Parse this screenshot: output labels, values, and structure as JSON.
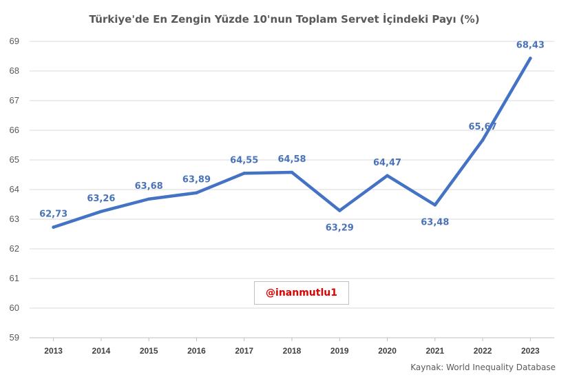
{
  "chart_data": {
    "type": "line",
    "title": "Türkiye'de En Zengin Yüzde 10'nun Toplam Servet İçindeki Payı (%)",
    "categories": [
      "2013",
      "2014",
      "2015",
      "2016",
      "2017",
      "2018",
      "2019",
      "2020",
      "2021",
      "2022",
      "2023"
    ],
    "series": [
      {
        "values": [
          62.73,
          63.26,
          63.68,
          63.89,
          64.55,
          64.58,
          63.29,
          64.47,
          63.48,
          65.67,
          68.43
        ]
      }
    ],
    "data_labels": [
      "62,73",
      "63,26",
      "63,68",
      "63,89",
      "64,55",
      "64,58",
      "63,29",
      "64,47",
      "63,48",
      "65,67",
      "68,43"
    ],
    "ylim": [
      59,
      69
    ],
    "yticks": [
      "59",
      "60",
      "61",
      "62",
      "63",
      "64",
      "65",
      "66",
      "67",
      "68",
      "69"
    ],
    "xlabel": "",
    "ylabel": "",
    "grid": true,
    "line_color": "#4472c4",
    "label_color": "#4a73b8",
    "source": "Kaynak: World Inequality Database",
    "watermark": "@inanmutlu1",
    "watermark_color": "#e00000"
  }
}
